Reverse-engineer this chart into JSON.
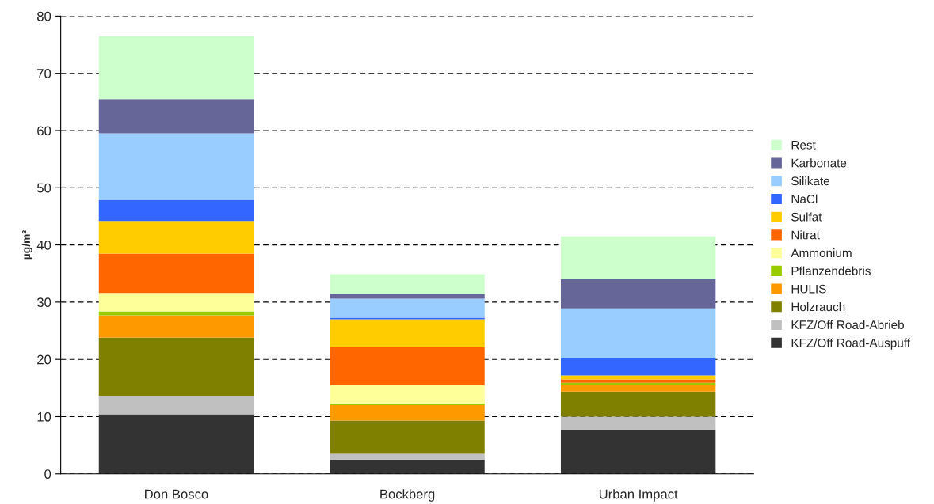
{
  "chart_data": {
    "type": "bar",
    "stacked": true,
    "ylabel": "µg/m³",
    "categories": [
      "Don Bosco",
      "Bockberg",
      "Urban Impact"
    ],
    "series": [
      {
        "name": "KFZ/Off Road-Auspuff",
        "color": "#333333",
        "values": [
          10.4,
          2.5,
          7.6
        ]
      },
      {
        "name": "KFZ/Off Road-Abrieb",
        "color": "#c0c0c0",
        "values": [
          3.2,
          1.0,
          2.4
        ]
      },
      {
        "name": "Holzrauch",
        "color": "#808000",
        "values": [
          10.2,
          5.8,
          4.4
        ]
      },
      {
        "name": "HULIS",
        "color": "#ff9900",
        "values": [
          3.9,
          2.7,
          1.1
        ]
      },
      {
        "name": "Pflanzendebris",
        "color": "#99cc00",
        "values": [
          0.7,
          0.3,
          0.4
        ]
      },
      {
        "name": "Ammonium",
        "color": "#ffff99",
        "values": [
          3.2,
          3.2,
          0
        ]
      },
      {
        "name": "Nitrat",
        "color": "#ff6600",
        "values": [
          6.9,
          6.6,
          0.6
        ]
      },
      {
        "name": "Sulfat",
        "color": "#ffcc00",
        "values": [
          5.7,
          4.9,
          0.7
        ]
      },
      {
        "name": "NaCl",
        "color": "#3366ff",
        "values": [
          3.7,
          0.3,
          3.1
        ]
      },
      {
        "name": "Silikate",
        "color": "#99ccff",
        "values": [
          11.6,
          3.3,
          8.6
        ]
      },
      {
        "name": "Karbonate",
        "color": "#666699",
        "values": [
          6.0,
          0.8,
          5.1
        ]
      },
      {
        "name": "Rest",
        "color": "#ccffcc",
        "values": [
          11.0,
          3.5,
          7.5
        ]
      }
    ],
    "ylim": [
      0,
      80
    ],
    "yticks": [
      0,
      10,
      20,
      30,
      40,
      50,
      60,
      70,
      80
    ],
    "grid": "y",
    "line_style": "dashed",
    "legend": "right"
  }
}
